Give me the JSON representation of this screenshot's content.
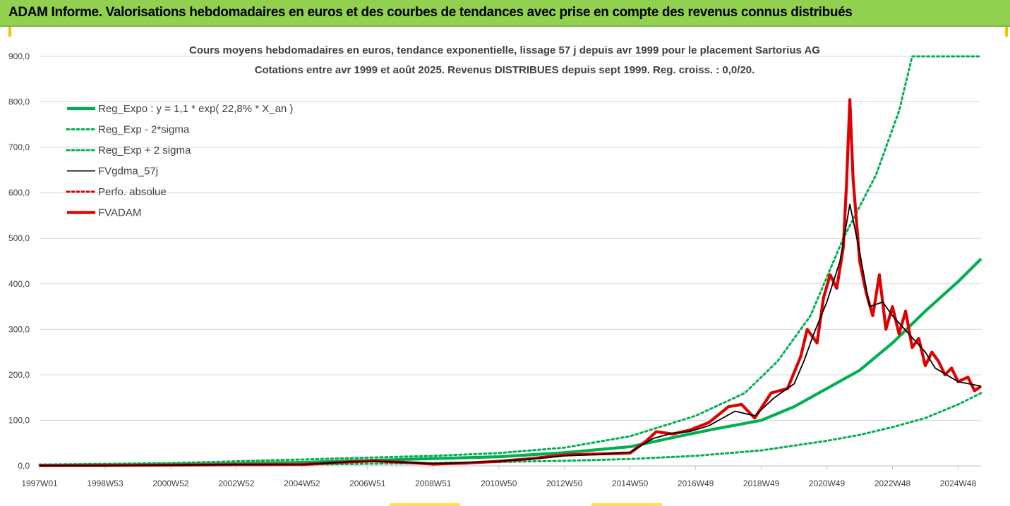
{
  "banner": {
    "title": "ADAM Informe. Valorisations hebdomadaires en euros et des courbes de tendances avec prise en compte des revenus connus distribués",
    "background": "#92d050"
  },
  "chart_data": {
    "type": "line",
    "title_line1": "Cours moyens hebdomadaires en euros, tendance exponentielle, lissage 57 j depuis avr 1999 pour le placement Sartorius AG",
    "title_line2": "Cotations entre avr 1999 et août 2025. Revenus DISTRIBUES depuis sept 1999. Reg. croiss. : 0,0/20.",
    "x_tick_labels": [
      "1997W01",
      "1998W53",
      "2000W52",
      "2002W52",
      "2004W52",
      "2006W51",
      "2008W51",
      "2010W50",
      "2012W50",
      "2014W50",
      "2016W49",
      "2018W49",
      "2020W49",
      "2022W48",
      "2024W48"
    ],
    "x_tick_years": [
      1997.0,
      1999.0,
      2001.0,
      2003.0,
      2005.0,
      2007.0,
      2009.0,
      2011.0,
      2013.0,
      2015.0,
      2017.0,
      2019.0,
      2021.0,
      2023.0,
      2025.0
    ],
    "x_range": [
      1997.0,
      2025.7
    ],
    "ylim": [
      0,
      900
    ],
    "y_ticks": [
      "0,0",
      "100,0",
      "200,0",
      "300,0",
      "400,0",
      "500,0",
      "600,0",
      "700,0",
      "800,0",
      "900,0"
    ],
    "grid": true,
    "legend_position": "top-left",
    "series": [
      {
        "name": "Reg_Expo : y = 1,1 * exp( 22,8% *  X_an )",
        "color": "#00b050",
        "style": "solid-thick",
        "points": [
          [
            1997.0,
            1.2
          ],
          [
            1999.0,
            1.9
          ],
          [
            2001.0,
            3.1
          ],
          [
            2003.0,
            4.8
          ],
          [
            2005.0,
            7.6
          ],
          [
            2007.0,
            12
          ],
          [
            2009.0,
            16
          ],
          [
            2011.0,
            20
          ],
          [
            2013.0,
            29
          ],
          [
            2015.0,
            42
          ],
          [
            2016.5,
            65
          ],
          [
            2017.5,
            80
          ],
          [
            2019.0,
            100
          ],
          [
            2020.0,
            130
          ],
          [
            2021.0,
            170
          ],
          [
            2022.0,
            210
          ],
          [
            2023.0,
            270
          ],
          [
            2024.0,
            340
          ],
          [
            2025.0,
            405
          ],
          [
            2025.7,
            455
          ]
        ]
      },
      {
        "name": "Reg_Exp - 2*sigma",
        "color": "#00b050",
        "style": "dotted",
        "points": [
          [
            1997.0,
            0.5
          ],
          [
            2001.0,
            1.3
          ],
          [
            2005.0,
            3
          ],
          [
            2009.0,
            6
          ],
          [
            2013.0,
            11
          ],
          [
            2015.0,
            15
          ],
          [
            2017.0,
            22
          ],
          [
            2019.0,
            34
          ],
          [
            2021.0,
            55
          ],
          [
            2022.0,
            68
          ],
          [
            2023.0,
            85
          ],
          [
            2024.0,
            105
          ],
          [
            2025.0,
            135
          ],
          [
            2025.7,
            160
          ]
        ]
      },
      {
        "name": "Reg_Exp + 2 sigma",
        "color": "#00b050",
        "style": "dotted",
        "points": [
          [
            1997.0,
            2.8
          ],
          [
            2001.0,
            6
          ],
          [
            2005.0,
            14
          ],
          [
            2009.0,
            22
          ],
          [
            2011.0,
            28
          ],
          [
            2013.0,
            40
          ],
          [
            2015.0,
            65
          ],
          [
            2017.0,
            110
          ],
          [
            2018.5,
            160
          ],
          [
            2019.5,
            230
          ],
          [
            2020.5,
            330
          ],
          [
            2021.5,
            500
          ],
          [
            2022.5,
            640
          ],
          [
            2023.2,
            780
          ],
          [
            2023.6,
            900
          ],
          [
            2025.7,
            900
          ]
        ]
      },
      {
        "name": "FVgdma_57j",
        "color": "#000000",
        "style": "solid",
        "points": [
          [
            1997.0,
            0.5
          ],
          [
            1999.0,
            0.8
          ],
          [
            2001.0,
            1.5
          ],
          [
            2003.0,
            2.5
          ],
          [
            2005.0,
            3
          ],
          [
            2006.5,
            9
          ],
          [
            2007.2,
            10
          ],
          [
            2008.0,
            8
          ],
          [
            2009.0,
            5
          ],
          [
            2010.0,
            7
          ],
          [
            2011.0,
            10
          ],
          [
            2012.0,
            15
          ],
          [
            2013.0,
            22
          ],
          [
            2014.0,
            25
          ],
          [
            2015.0,
            30
          ],
          [
            2015.7,
            60
          ],
          [
            2016.3,
            72
          ],
          [
            2016.8,
            75
          ],
          [
            2017.4,
            88
          ],
          [
            2018.2,
            120
          ],
          [
            2018.8,
            110
          ],
          [
            2019.4,
            150
          ],
          [
            2020.0,
            180
          ],
          [
            2020.3,
            230
          ],
          [
            2020.6,
            290
          ],
          [
            2021.0,
            360
          ],
          [
            2021.4,
            450
          ],
          [
            2021.7,
            575
          ],
          [
            2022.0,
            470
          ],
          [
            2022.3,
            350
          ],
          [
            2022.7,
            360
          ],
          [
            2023.0,
            330
          ],
          [
            2023.5,
            290
          ],
          [
            2024.0,
            250
          ],
          [
            2024.3,
            215
          ],
          [
            2025.0,
            185
          ],
          [
            2025.7,
            175
          ]
        ]
      },
      {
        "name": "Perfo. absolue",
        "color": "#e00000",
        "style": "dotted",
        "points": []
      },
      {
        "name": "FVADAM",
        "color": "#e00000",
        "style": "solid-thick",
        "points": [
          [
            1997.0,
            0.5
          ],
          [
            1999.0,
            0.8
          ],
          [
            2001.0,
            1.5
          ],
          [
            2003.0,
            2.5
          ],
          [
            2005.0,
            3
          ],
          [
            2006.5,
            9
          ],
          [
            2007.2,
            11
          ],
          [
            2008.0,
            8
          ],
          [
            2009.0,
            4
          ],
          [
            2010.0,
            6
          ],
          [
            2011.0,
            10
          ],
          [
            2012.0,
            16
          ],
          [
            2013.0,
            24
          ],
          [
            2014.0,
            26
          ],
          [
            2015.0,
            28
          ],
          [
            2015.5,
            55
          ],
          [
            2015.8,
            75
          ],
          [
            2016.3,
            70
          ],
          [
            2016.8,
            78
          ],
          [
            2017.4,
            95
          ],
          [
            2018.0,
            130
          ],
          [
            2018.4,
            135
          ],
          [
            2018.8,
            105
          ],
          [
            2019.3,
            160
          ],
          [
            2019.8,
            170
          ],
          [
            2020.2,
            240
          ],
          [
            2020.4,
            300
          ],
          [
            2020.7,
            270
          ],
          [
            2020.9,
            370
          ],
          [
            2021.1,
            420
          ],
          [
            2021.3,
            390
          ],
          [
            2021.5,
            480
          ],
          [
            2021.6,
            620
          ],
          [
            2021.7,
            805
          ],
          [
            2021.8,
            630
          ],
          [
            2022.0,
            450
          ],
          [
            2022.2,
            380
          ],
          [
            2022.4,
            330
          ],
          [
            2022.6,
            420
          ],
          [
            2022.8,
            300
          ],
          [
            2023.0,
            350
          ],
          [
            2023.2,
            290
          ],
          [
            2023.4,
            340
          ],
          [
            2023.6,
            260
          ],
          [
            2023.8,
            280
          ],
          [
            2024.0,
            220
          ],
          [
            2024.2,
            250
          ],
          [
            2024.4,
            230
          ],
          [
            2024.6,
            200
          ],
          [
            2024.8,
            215
          ],
          [
            2025.0,
            185
          ],
          [
            2025.3,
            195
          ],
          [
            2025.5,
            165
          ],
          [
            2025.7,
            175
          ]
        ]
      }
    ]
  },
  "bottom_marks": {
    "color": "#ffe14d"
  }
}
